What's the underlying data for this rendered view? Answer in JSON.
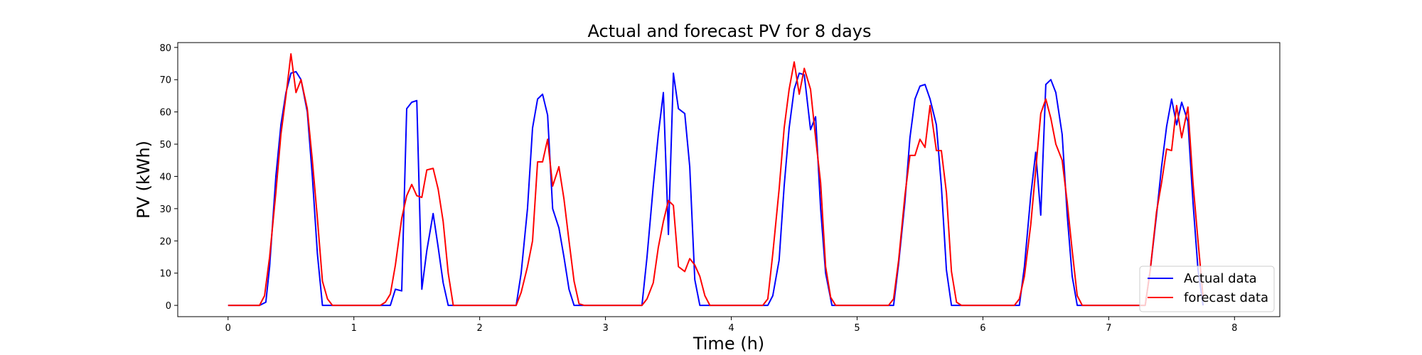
{
  "chart_data": {
    "type": "line",
    "title": "Actual and forecast PV for 8 days",
    "xlabel": "Time (h)",
    "ylabel": "PV (kWh)",
    "xlim": [
      -0.4,
      8.36
    ],
    "ylim": [
      -3.5,
      81.5
    ],
    "xticks": [
      0,
      1,
      2,
      3,
      4,
      5,
      6,
      7,
      8
    ],
    "yticks": [
      0,
      10,
      20,
      30,
      40,
      50,
      60,
      70,
      80
    ],
    "grid": false,
    "legend_position": "lower-right",
    "series": [
      {
        "name": "Actual data",
        "color": "#0000ff",
        "points": [
          [
            0,
            0
          ],
          [
            0.25,
            0
          ],
          [
            0.3,
            1
          ],
          [
            0.33,
            12
          ],
          [
            0.38,
            40
          ],
          [
            0.42,
            56
          ],
          [
            0.46,
            66
          ],
          [
            0.5,
            72
          ],
          [
            0.54,
            72.5
          ],
          [
            0.58,
            70
          ],
          [
            0.63,
            60
          ],
          [
            0.67,
            40
          ],
          [
            0.71,
            16
          ],
          [
            0.75,
            0
          ],
          [
            0.8,
            0
          ],
          [
            1.0,
            0
          ],
          [
            1.29,
            0
          ],
          [
            1.33,
            5
          ],
          [
            1.38,
            4.5
          ],
          [
            1.42,
            61
          ],
          [
            1.46,
            63
          ],
          [
            1.5,
            63.5
          ],
          [
            1.54,
            5
          ],
          [
            1.58,
            17
          ],
          [
            1.63,
            28.5
          ],
          [
            1.67,
            18
          ],
          [
            1.71,
            7
          ],
          [
            1.75,
            0
          ],
          [
            1.8,
            0
          ],
          [
            2.0,
            0
          ],
          [
            2.29,
            0
          ],
          [
            2.33,
            10
          ],
          [
            2.38,
            30
          ],
          [
            2.42,
            55
          ],
          [
            2.46,
            64
          ],
          [
            2.5,
            65.5
          ],
          [
            2.54,
            59
          ],
          [
            2.58,
            30
          ],
          [
            2.63,
            24
          ],
          [
            2.67,
            15
          ],
          [
            2.71,
            5
          ],
          [
            2.75,
            0
          ],
          [
            2.8,
            0
          ],
          [
            3.0,
            0
          ],
          [
            3.29,
            0
          ],
          [
            3.33,
            15
          ],
          [
            3.38,
            37
          ],
          [
            3.42,
            53
          ],
          [
            3.46,
            66
          ],
          [
            3.5,
            22
          ],
          [
            3.54,
            72
          ],
          [
            3.58,
            61
          ],
          [
            3.63,
            59.5
          ],
          [
            3.67,
            43
          ],
          [
            3.71,
            8
          ],
          [
            3.75,
            0
          ],
          [
            3.8,
            0
          ],
          [
            4.0,
            0
          ],
          [
            4.29,
            0
          ],
          [
            4.33,
            3
          ],
          [
            4.38,
            14
          ],
          [
            4.42,
            37
          ],
          [
            4.46,
            55
          ],
          [
            4.5,
            67
          ],
          [
            4.54,
            72
          ],
          [
            4.58,
            71.5
          ],
          [
            4.63,
            54.5
          ],
          [
            4.67,
            58.5
          ],
          [
            4.71,
            30
          ],
          [
            4.75,
            10
          ],
          [
            4.8,
            0
          ],
          [
            5.0,
            0
          ],
          [
            5.29,
            0
          ],
          [
            5.33,
            13
          ],
          [
            5.38,
            32
          ],
          [
            5.42,
            52
          ],
          [
            5.46,
            64
          ],
          [
            5.5,
            68
          ],
          [
            5.54,
            68.5
          ],
          [
            5.58,
            64
          ],
          [
            5.63,
            56
          ],
          [
            5.67,
            37
          ],
          [
            5.71,
            11
          ],
          [
            5.75,
            0
          ],
          [
            5.8,
            0
          ],
          [
            6.0,
            0
          ],
          [
            6.29,
            0
          ],
          [
            6.33,
            12
          ],
          [
            6.38,
            34
          ],
          [
            6.42,
            47.5
          ],
          [
            6.46,
            28
          ],
          [
            6.5,
            68.5
          ],
          [
            6.54,
            70
          ],
          [
            6.58,
            66
          ],
          [
            6.63,
            53
          ],
          [
            6.67,
            28
          ],
          [
            6.71,
            9
          ],
          [
            6.75,
            0
          ],
          [
            6.8,
            0
          ],
          [
            7.0,
            0
          ],
          [
            7.29,
            0
          ],
          [
            7.33,
            11
          ],
          [
            7.38,
            28
          ],
          [
            7.42,
            43
          ],
          [
            7.46,
            55.5
          ],
          [
            7.5,
            64
          ],
          [
            7.54,
            56
          ],
          [
            7.58,
            63
          ],
          [
            7.63,
            57
          ],
          [
            7.67,
            32
          ],
          [
            7.71,
            11
          ],
          [
            7.75,
            0
          ]
        ]
      },
      {
        "name": "forecast data",
        "color": "#ff0000",
        "points": [
          [
            0,
            0
          ],
          [
            0.25,
            0
          ],
          [
            0.29,
            3
          ],
          [
            0.33,
            15
          ],
          [
            0.38,
            35
          ],
          [
            0.42,
            53
          ],
          [
            0.46,
            65
          ],
          [
            0.5,
            78
          ],
          [
            0.54,
            66
          ],
          [
            0.58,
            70
          ],
          [
            0.63,
            61
          ],
          [
            0.67,
            45
          ],
          [
            0.71,
            27
          ],
          [
            0.75,
            7.5
          ],
          [
            0.79,
            2
          ],
          [
            0.83,
            0
          ],
          [
            1.0,
            0
          ],
          [
            1.21,
            0
          ],
          [
            1.25,
            1
          ],
          [
            1.29,
            3.5
          ],
          [
            1.33,
            12.5
          ],
          [
            1.38,
            27
          ],
          [
            1.42,
            34
          ],
          [
            1.46,
            37.5
          ],
          [
            1.5,
            34
          ],
          [
            1.54,
            33.5
          ],
          [
            1.58,
            42
          ],
          [
            1.63,
            42.5
          ],
          [
            1.67,
            36
          ],
          [
            1.71,
            26
          ],
          [
            1.75,
            10
          ],
          [
            1.79,
            0
          ],
          [
            1.83,
            0
          ],
          [
            2.0,
            0
          ],
          [
            2.29,
            0
          ],
          [
            2.33,
            4
          ],
          [
            2.38,
            12
          ],
          [
            2.42,
            20
          ],
          [
            2.46,
            44.5
          ],
          [
            2.5,
            44.5
          ],
          [
            2.54,
            51.5
          ],
          [
            2.58,
            37
          ],
          [
            2.63,
            43
          ],
          [
            2.67,
            33
          ],
          [
            2.71,
            20
          ],
          [
            2.75,
            7.5
          ],
          [
            2.79,
            0.5
          ],
          [
            2.83,
            0
          ],
          [
            3.0,
            0
          ],
          [
            3.29,
            0
          ],
          [
            3.33,
            2
          ],
          [
            3.38,
            7
          ],
          [
            3.42,
            18
          ],
          [
            3.46,
            26
          ],
          [
            3.5,
            32.5
          ],
          [
            3.54,
            31
          ],
          [
            3.58,
            12
          ],
          [
            3.63,
            10.5
          ],
          [
            3.67,
            14.5
          ],
          [
            3.71,
            12.5
          ],
          [
            3.75,
            9
          ],
          [
            3.79,
            3
          ],
          [
            3.83,
            0
          ],
          [
            4.0,
            0
          ],
          [
            4.25,
            0
          ],
          [
            4.29,
            2
          ],
          [
            4.33,
            16
          ],
          [
            4.38,
            36
          ],
          [
            4.42,
            55
          ],
          [
            4.46,
            67
          ],
          [
            4.5,
            75.5
          ],
          [
            4.54,
            65.5
          ],
          [
            4.58,
            73.5
          ],
          [
            4.63,
            67
          ],
          [
            4.67,
            52
          ],
          [
            4.71,
            38
          ],
          [
            4.75,
            12
          ],
          [
            4.79,
            2.5
          ],
          [
            4.83,
            0
          ],
          [
            5.0,
            0
          ],
          [
            5.25,
            0
          ],
          [
            5.29,
            2
          ],
          [
            5.33,
            14
          ],
          [
            5.38,
            34
          ],
          [
            5.42,
            46.5
          ],
          [
            5.46,
            46.5
          ],
          [
            5.5,
            51.5
          ],
          [
            5.54,
            49
          ],
          [
            5.58,
            62
          ],
          [
            5.63,
            48
          ],
          [
            5.67,
            48
          ],
          [
            5.71,
            35
          ],
          [
            5.75,
            10.5
          ],
          [
            5.79,
            1
          ],
          [
            5.83,
            0
          ],
          [
            6.0,
            0
          ],
          [
            6.25,
            0
          ],
          [
            6.29,
            2
          ],
          [
            6.33,
            9
          ],
          [
            6.38,
            25
          ],
          [
            6.42,
            42
          ],
          [
            6.46,
            59.5
          ],
          [
            6.5,
            64
          ],
          [
            6.54,
            58
          ],
          [
            6.58,
            50
          ],
          [
            6.63,
            45
          ],
          [
            6.67,
            32
          ],
          [
            6.71,
            17
          ],
          [
            6.75,
            3
          ],
          [
            6.79,
            0
          ],
          [
            7.0,
            0
          ],
          [
            7.29,
            0
          ],
          [
            7.33,
            11
          ],
          [
            7.38,
            29
          ],
          [
            7.42,
            38
          ],
          [
            7.46,
            48.5
          ],
          [
            7.5,
            48
          ],
          [
            7.54,
            62
          ],
          [
            7.58,
            52
          ],
          [
            7.63,
            61.5
          ],
          [
            7.67,
            38
          ],
          [
            7.71,
            20
          ],
          [
            7.75,
            2.5
          ]
        ]
      }
    ]
  }
}
